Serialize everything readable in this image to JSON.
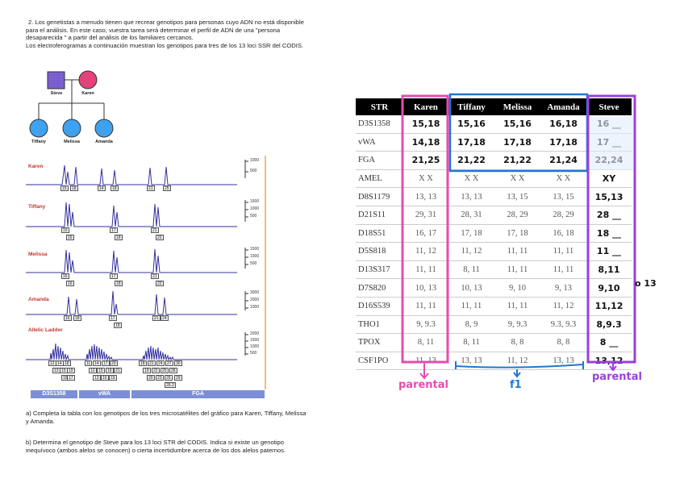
{
  "intro": {
    "p1": "2. Los genetistas a menudo tienen que recrear genotipos para personas cuyo ADN no está disponible para el análisis. En este caso, vuestra tarea será determinar el perfil de ADN de una \"persona desaparecida \" a partir del análisis de los familiares cercanos.",
    "p2": "Los electroferogramas a continuación muestran los genotipos para tres de los 13 loci SSR del CODIS."
  },
  "pedigree": {
    "father": "Steve",
    "mother": "Karen",
    "children": [
      "Tiffany",
      "Melissa",
      "Amanda"
    ],
    "colors": {
      "male": "#7b5fd0",
      "female": "#e4427a",
      "child": "#3ea2f0"
    }
  },
  "epg": {
    "rows": [
      {
        "name": "Karen",
        "scale": [
          "1000",
          "500"
        ],
        "boxes": [
          [
            "15",
            "18"
          ],
          [
            "14",
            "18"
          ],
          [
            "21",
            "25"
          ]
        ]
      },
      {
        "name": "Tiffany",
        "scale": [
          "1500",
          "1000",
          "500"
        ],
        "boxes": [
          [
            "15",
            "16"
          ],
          [
            "17",
            "18"
          ],
          [
            "21",
            "22"
          ]
        ]
      },
      {
        "name": "Melissa",
        "scale": [
          "1500",
          "1000",
          "500"
        ],
        "boxes": [
          [
            "15",
            "16"
          ],
          [
            "17",
            "18"
          ],
          [
            "21",
            "22"
          ]
        ]
      },
      {
        "name": "Amanda",
        "scale": [
          "3000",
          "2000",
          "1000"
        ],
        "boxes": [
          [
            "16",
            "18"
          ],
          [
            "17",
            "18"
          ],
          [
            "21",
            "24"
          ]
        ]
      },
      {
        "name": "Allelic Ladder",
        "scale": [
          "2000",
          "1500",
          "1000",
          "500"
        ]
      }
    ],
    "ladder": {
      "d3": [
        "12",
        "13",
        "14",
        "15",
        "16",
        "17",
        "18",
        "19"
      ],
      "vwa": [
        "11",
        "12",
        "13",
        "14",
        "15",
        "16",
        "17",
        "18",
        "19",
        "20",
        "21"
      ],
      "fga": [
        "18",
        "19",
        "20",
        "21",
        "22",
        "23",
        "24",
        "25",
        "26",
        "26.2",
        "27",
        "28",
        "29",
        "30"
      ]
    },
    "loci": [
      "D3S1358",
      "vWA",
      "FGA"
    ]
  },
  "table": {
    "headers": [
      "STR",
      "Karen",
      "Tiffany",
      "Melissa",
      "Amanda",
      "Steve"
    ],
    "rows": [
      [
        "D3S1358",
        "15,18",
        "15,16",
        "15,16",
        "16,18",
        "16 __"
      ],
      [
        "vWA",
        "14,18",
        "17,18",
        "17,18",
        "17,18",
        "17 __"
      ],
      [
        "FGA",
        "21,25",
        "21,22",
        "21,22",
        "21,24",
        "22,24"
      ],
      [
        "AMEL",
        "X X",
        "X X",
        "X X",
        "X X",
        "XY"
      ],
      [
        "D8S1179",
        "13, 13",
        "13, 13",
        "13, 15",
        "13, 15",
        "15,13"
      ],
      [
        "D21S11",
        "29, 31",
        "28, 31",
        "28, 29",
        "28, 29",
        "28 __"
      ],
      [
        "D18S51",
        "16, 17",
        "17, 18",
        "17, 18",
        "16, 18",
        "18 __"
      ],
      [
        "D5S818",
        "11, 12",
        "11, 12",
        "11, 11",
        "11, 11",
        "11 __"
      ],
      [
        "D13S317",
        "11, 11",
        "8, 11",
        "11, 11",
        "11, 11",
        "8,11"
      ],
      [
        "D7S820",
        "10, 13",
        "10, 13",
        "9, 10",
        "9, 13",
        "9,10"
      ],
      [
        "D16S539",
        "11, 11",
        "11, 11",
        "11, 11",
        "11, 12",
        "11,12"
      ],
      [
        "THO1",
        "9, 9.3",
        "8, 9",
        "9, 9.3",
        "9.3, 9.3",
        "8,9.3"
      ],
      [
        "TPOX",
        "8, 11",
        "8, 11",
        "8, 8",
        "8, 8",
        "8 __"
      ],
      [
        "CSF1PO",
        "11, 13",
        "13, 13",
        "11, 12",
        "13, 13",
        "13,12"
      ]
    ],
    "d7_extra": "o 13"
  },
  "labels": {
    "karen_col": "parental",
    "children_cols": "f1",
    "steve_col": "parental"
  },
  "questions": {
    "a": "a) Completa la tabla con los genotipos de los tres microsatélites del gráfico para Karen, Tiffany, Melissa y Amanda.",
    "b": "b) Determina el genotipo de Steve para los 13 loci STR del CODIS. Indica si existe un genotipo inequívoco (ambos alelos se conocen) o cierta incertidumbre acerca de los dos alelos paternos."
  }
}
